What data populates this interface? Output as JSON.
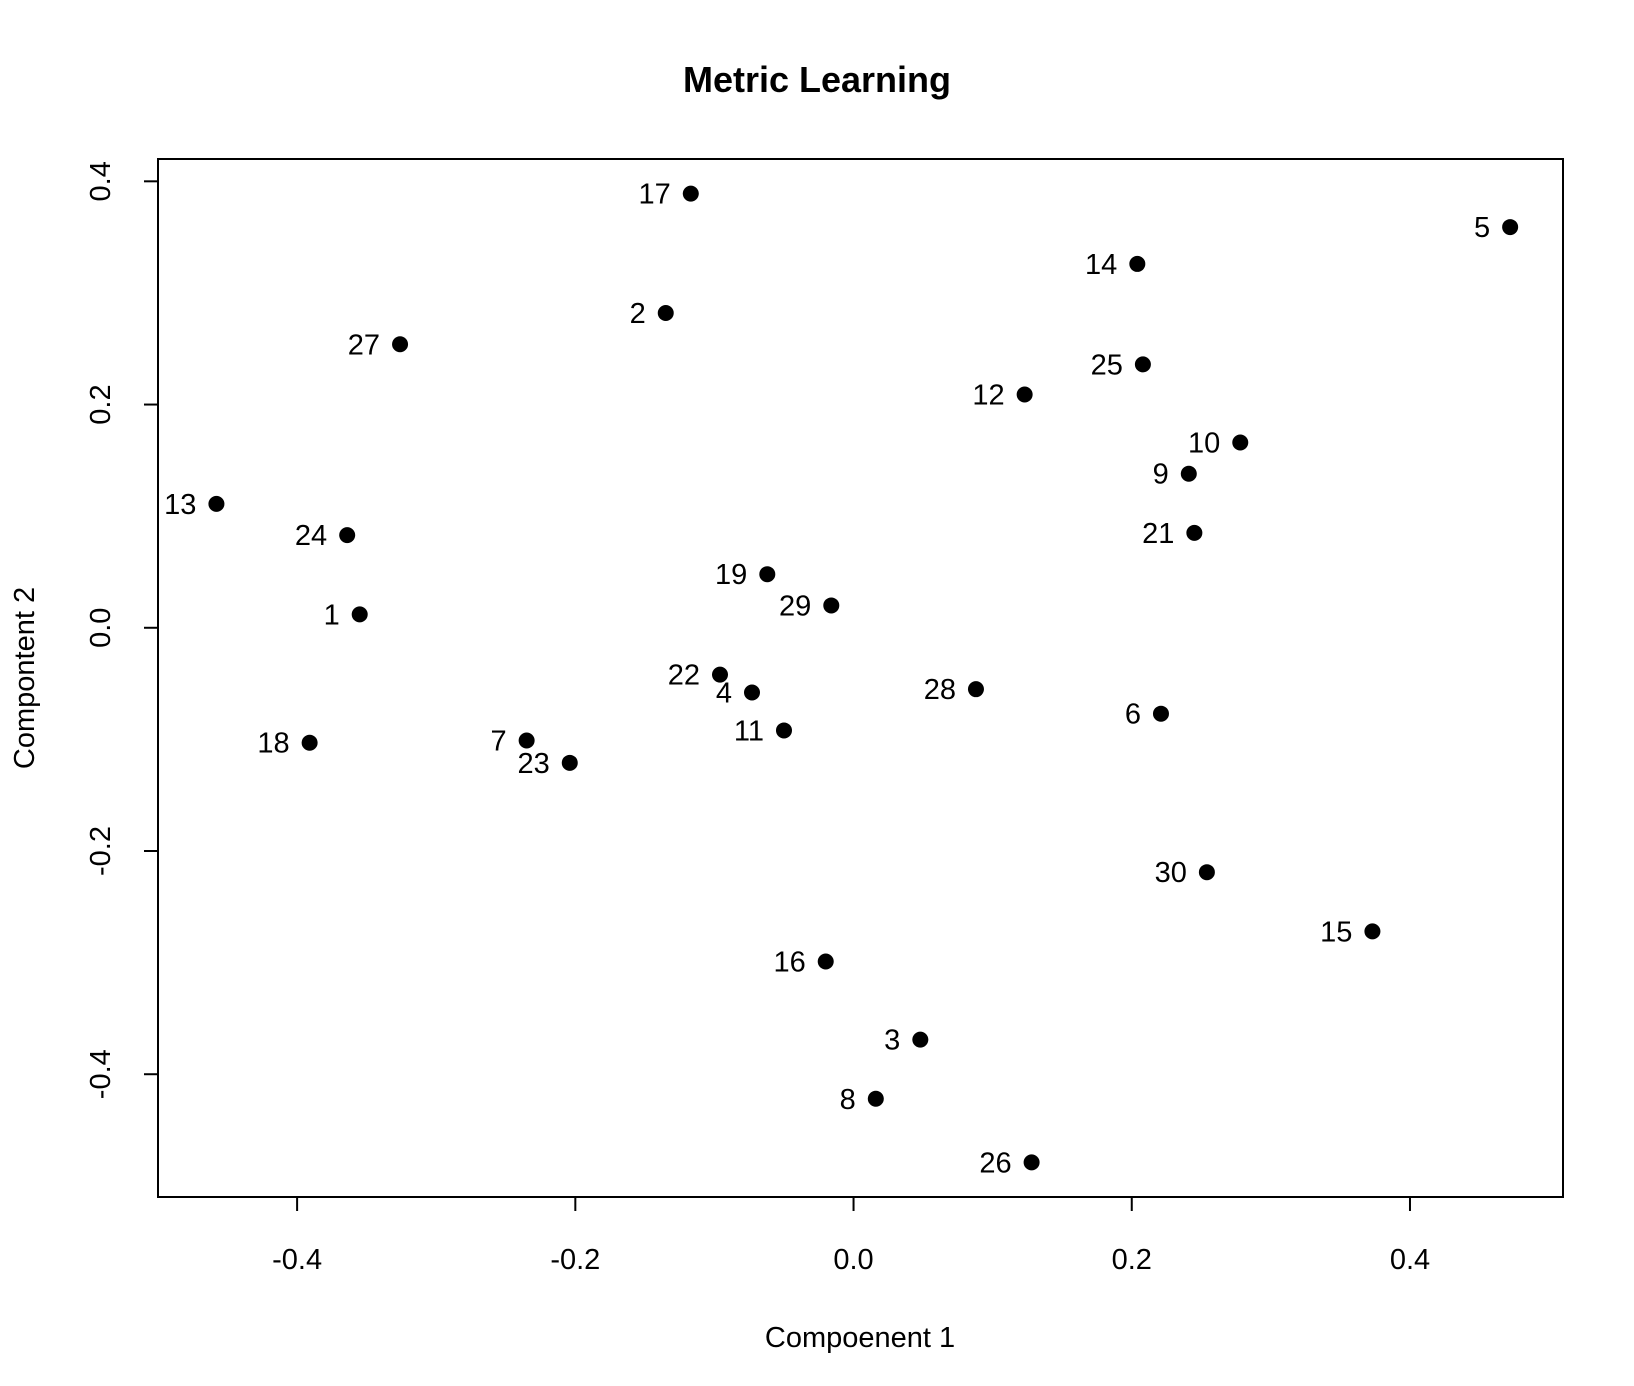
{
  "chart_data": {
    "type": "scatter",
    "title": "Metric Learning",
    "xlabel": "Compoenent 1",
    "ylabel": "Compontent 2",
    "xlim": [
      -0.5,
      0.51
    ],
    "ylim": [
      -0.51,
      0.42
    ],
    "xticks": [
      {
        "value": -0.4,
        "label": "-0.4"
      },
      {
        "value": -0.2,
        "label": "-0.2"
      },
      {
        "value": 0.0,
        "label": "0.0"
      },
      {
        "value": 0.2,
        "label": "0.2"
      },
      {
        "value": 0.4,
        "label": "0.4"
      }
    ],
    "yticks": [
      {
        "value": -0.4,
        "label": "-0.4"
      },
      {
        "value": -0.2,
        "label": "-0.2"
      },
      {
        "value": 0.0,
        "label": "0.0"
      },
      {
        "value": 0.2,
        "label": "0.2"
      },
      {
        "value": 0.4,
        "label": "0.4"
      }
    ],
    "grid": false,
    "points": [
      {
        "label": "1",
        "x": -0.355,
        "y": 0.012
      },
      {
        "label": "2",
        "x": -0.135,
        "y": 0.282
      },
      {
        "label": "3",
        "x": 0.048,
        "y": -0.369
      },
      {
        "label": "4",
        "x": -0.073,
        "y": -0.058
      },
      {
        "label": "5",
        "x": 0.472,
        "y": 0.359
      },
      {
        "label": "6",
        "x": 0.221,
        "y": -0.077
      },
      {
        "label": "7",
        "x": -0.235,
        "y": -0.101
      },
      {
        "label": "8",
        "x": 0.016,
        "y": -0.422
      },
      {
        "label": "9",
        "x": 0.241,
        "y": 0.138
      },
      {
        "label": "10",
        "x": 0.278,
        "y": 0.166
      },
      {
        "label": "11",
        "x": -0.05,
        "y": -0.092
      },
      {
        "label": "12",
        "x": 0.123,
        "y": 0.209
      },
      {
        "label": "13",
        "x": -0.458,
        "y": 0.111
      },
      {
        "label": "14",
        "x": 0.204,
        "y": 0.326
      },
      {
        "label": "15",
        "x": 0.373,
        "y": -0.272
      },
      {
        "label": "16",
        "x": -0.02,
        "y": -0.299
      },
      {
        "label": "17",
        "x": -0.117,
        "y": 0.389
      },
      {
        "label": "18",
        "x": -0.391,
        "y": -0.103
      },
      {
        "label": "19",
        "x": -0.062,
        "y": 0.048
      },
      {
        "label": "21",
        "x": 0.245,
        "y": 0.085
      },
      {
        "label": "22",
        "x": -0.096,
        "y": -0.042
      },
      {
        "label": "23",
        "x": -0.204,
        "y": -0.121
      },
      {
        "label": "24",
        "x": -0.364,
        "y": 0.083
      },
      {
        "label": "25",
        "x": 0.208,
        "y": 0.236
      },
      {
        "label": "26",
        "x": 0.128,
        "y": -0.479
      },
      {
        "label": "27",
        "x": -0.326,
        "y": 0.254
      },
      {
        "label": "28",
        "x": 0.088,
        "y": -0.055
      },
      {
        "label": "29",
        "x": -0.016,
        "y": 0.02
      },
      {
        "label": "30",
        "x": 0.254,
        "y": -0.219
      }
    ]
  }
}
